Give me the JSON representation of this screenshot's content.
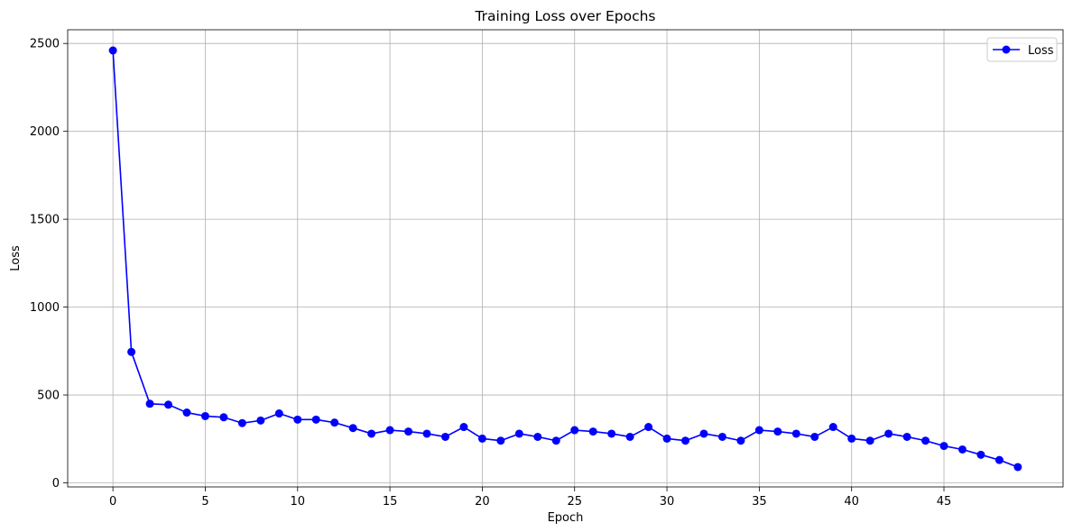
{
  "chart_data": {
    "type": "line",
    "title": "Training Loss over Epochs",
    "xlabel": "Epoch",
    "ylabel": "Loss",
    "xlim": [
      -2.45,
      51.45
    ],
    "ylim": [
      -23,
      2578
    ],
    "xticks": [
      0,
      5,
      10,
      15,
      20,
      25,
      30,
      35,
      40,
      45
    ],
    "yticks": [
      0,
      500,
      1000,
      1500,
      2000,
      2500
    ],
    "grid": true,
    "legend_position": "top-right",
    "series": [
      {
        "name": "Loss",
        "color": "#0000ff",
        "marker": "circle",
        "x": [
          0,
          1,
          2,
          3,
          4,
          5,
          6,
          7,
          8,
          9,
          10,
          11,
          12,
          13,
          14,
          15,
          16,
          17,
          18,
          19,
          20,
          21,
          22,
          23,
          24,
          25,
          26,
          27,
          28,
          29,
          30,
          31,
          32,
          33,
          34,
          35,
          36,
          37,
          38,
          39,
          40,
          41,
          42,
          43,
          44,
          45,
          46,
          47,
          48,
          49
        ],
        "values": [
          2460,
          745,
          450,
          445,
          400,
          380,
          373,
          340,
          355,
          395,
          360,
          360,
          343,
          312,
          280,
          300,
          292,
          280,
          262,
          318,
          252,
          240,
          280,
          262,
          240,
          300,
          292,
          280,
          262,
          318,
          252,
          240,
          280,
          262,
          240,
          300,
          292,
          280,
          262,
          318,
          252,
          240,
          280,
          262,
          240,
          210,
          190,
          160,
          130,
          90
        ]
      }
    ]
  }
}
